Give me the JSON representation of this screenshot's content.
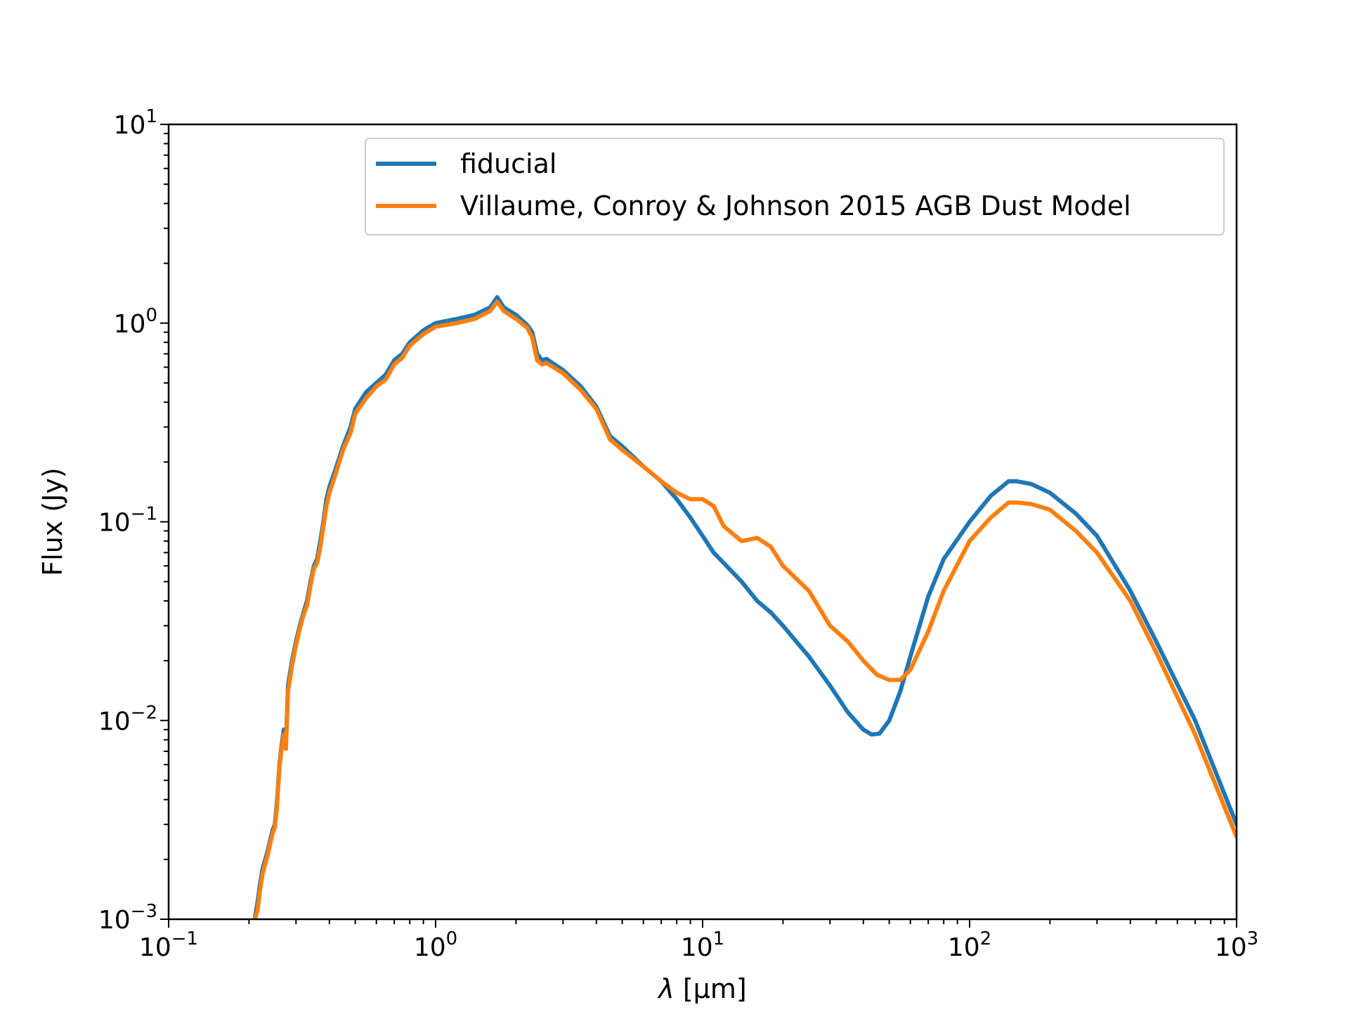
{
  "chart_data": {
    "type": "line",
    "title": "",
    "xlabel_symbol": "λ",
    "xlabel_unit": "[μm]",
    "ylabel": "Flux (Jy)",
    "xscale": "log",
    "yscale": "log",
    "xlim": [
      0.1,
      1000
    ],
    "ylim": [
      0.001,
      10
    ],
    "x_ticks": [
      {
        "base": "10",
        "exp": "−1",
        "value": 0.1
      },
      {
        "base": "10",
        "exp": "0",
        "value": 1
      },
      {
        "base": "10",
        "exp": "1",
        "value": 10
      },
      {
        "base": "10",
        "exp": "2",
        "value": 100
      },
      {
        "base": "10",
        "exp": "3",
        "value": 1000
      }
    ],
    "y_ticks": [
      {
        "base": "10",
        "exp": "−3",
        "value": 0.001
      },
      {
        "base": "10",
        "exp": "−2",
        "value": 0.01
      },
      {
        "base": "10",
        "exp": "−1",
        "value": 0.1
      },
      {
        "base": "10",
        "exp": "0",
        "value": 1
      },
      {
        "base": "10",
        "exp": "1",
        "value": 10
      }
    ],
    "legend_position": "top-right",
    "series": [
      {
        "name": "fiducial",
        "color": "#1f77b4",
        "x": [
          0.21,
          0.215,
          0.22,
          0.225,
          0.23,
          0.235,
          0.24,
          0.245,
          0.25,
          0.255,
          0.26,
          0.265,
          0.27,
          0.275,
          0.28,
          0.29,
          0.3,
          0.31,
          0.32,
          0.33,
          0.34,
          0.35,
          0.36,
          0.37,
          0.38,
          0.39,
          0.4,
          0.42,
          0.45,
          0.48,
          0.5,
          0.55,
          0.6,
          0.65,
          0.7,
          0.75,
          0.8,
          0.9,
          1.0,
          1.2,
          1.4,
          1.6,
          1.7,
          1.8,
          2.0,
          2.2,
          2.3,
          2.4,
          2.5,
          2.6,
          3.0,
          3.5,
          4.0,
          4.5,
          5.0,
          6.0,
          7.0,
          8.0,
          9.0,
          10.0,
          11.0,
          12.0,
          14.0,
          16.0,
          18.0,
          20.0,
          25.0,
          30.0,
          35.0,
          40.0,
          43.0,
          46.0,
          50.0,
          55.0,
          60.0,
          70.0,
          80.0,
          100.0,
          120.0,
          140.0,
          150.0,
          170.0,
          200.0,
          250.0,
          300.0,
          400.0,
          500.0,
          700.0,
          1000.0
        ],
        "y": [
          0.001,
          0.0012,
          0.0015,
          0.0018,
          0.002,
          0.0022,
          0.0025,
          0.0028,
          0.003,
          0.004,
          0.006,
          0.0075,
          0.009,
          0.0075,
          0.015,
          0.02,
          0.025,
          0.03,
          0.035,
          0.04,
          0.05,
          0.06,
          0.065,
          0.08,
          0.1,
          0.13,
          0.15,
          0.18,
          0.24,
          0.3,
          0.37,
          0.45,
          0.5,
          0.55,
          0.65,
          0.7,
          0.8,
          0.92,
          1.0,
          1.05,
          1.1,
          1.2,
          1.35,
          1.2,
          1.1,
          0.98,
          0.9,
          0.7,
          0.65,
          0.66,
          0.58,
          0.48,
          0.38,
          0.27,
          0.24,
          0.19,
          0.16,
          0.13,
          0.105,
          0.085,
          0.07,
          0.062,
          0.05,
          0.04,
          0.035,
          0.03,
          0.021,
          0.015,
          0.011,
          0.009,
          0.0085,
          0.0086,
          0.01,
          0.014,
          0.021,
          0.042,
          0.065,
          0.1,
          0.135,
          0.16,
          0.16,
          0.155,
          0.14,
          0.11,
          0.085,
          0.045,
          0.025,
          0.01,
          0.003
        ]
      },
      {
        "name": "Villaume, Conroy & Johnson 2015 AGB Dust Model",
        "color": "#ff7f0e",
        "x": [
          0.21,
          0.215,
          0.22,
          0.225,
          0.23,
          0.235,
          0.24,
          0.245,
          0.25,
          0.255,
          0.26,
          0.265,
          0.27,
          0.275,
          0.28,
          0.29,
          0.3,
          0.31,
          0.32,
          0.33,
          0.34,
          0.35,
          0.36,
          0.37,
          0.38,
          0.39,
          0.4,
          0.42,
          0.45,
          0.48,
          0.5,
          0.55,
          0.6,
          0.65,
          0.7,
          0.75,
          0.8,
          0.9,
          1.0,
          1.2,
          1.4,
          1.6,
          1.7,
          1.8,
          2.0,
          2.2,
          2.3,
          2.4,
          2.5,
          2.6,
          3.0,
          3.5,
          4.0,
          4.5,
          5.0,
          6.0,
          7.0,
          8.0,
          9.0,
          10.0,
          11.0,
          12.0,
          14.0,
          16.0,
          18.0,
          20.0,
          25.0,
          30.0,
          35.0,
          40.0,
          45.0,
          50.0,
          55.0,
          60.0,
          70.0,
          80.0,
          100.0,
          120.0,
          140.0,
          150.0,
          170.0,
          200.0,
          250.0,
          300.0,
          400.0,
          500.0,
          700.0,
          1000.0
        ],
        "y": [
          0.001,
          0.0011,
          0.0014,
          0.0017,
          0.0019,
          0.0021,
          0.0024,
          0.0027,
          0.0029,
          0.0038,
          0.0058,
          0.0072,
          0.0085,
          0.0072,
          0.014,
          0.019,
          0.024,
          0.029,
          0.034,
          0.038,
          0.048,
          0.058,
          0.062,
          0.075,
          0.095,
          0.12,
          0.14,
          0.17,
          0.23,
          0.28,
          0.35,
          0.42,
          0.48,
          0.52,
          0.62,
          0.67,
          0.77,
          0.88,
          0.96,
          1.0,
          1.05,
          1.15,
          1.28,
          1.15,
          1.05,
          0.95,
          0.85,
          0.65,
          0.62,
          0.63,
          0.56,
          0.46,
          0.37,
          0.26,
          0.23,
          0.19,
          0.16,
          0.14,
          0.13,
          0.13,
          0.12,
          0.095,
          0.08,
          0.083,
          0.075,
          0.06,
          0.045,
          0.03,
          0.025,
          0.02,
          0.017,
          0.016,
          0.016,
          0.018,
          0.028,
          0.045,
          0.08,
          0.105,
          0.125,
          0.125,
          0.123,
          0.115,
          0.09,
          0.07,
          0.04,
          0.022,
          0.0085,
          0.0026
        ]
      }
    ]
  }
}
